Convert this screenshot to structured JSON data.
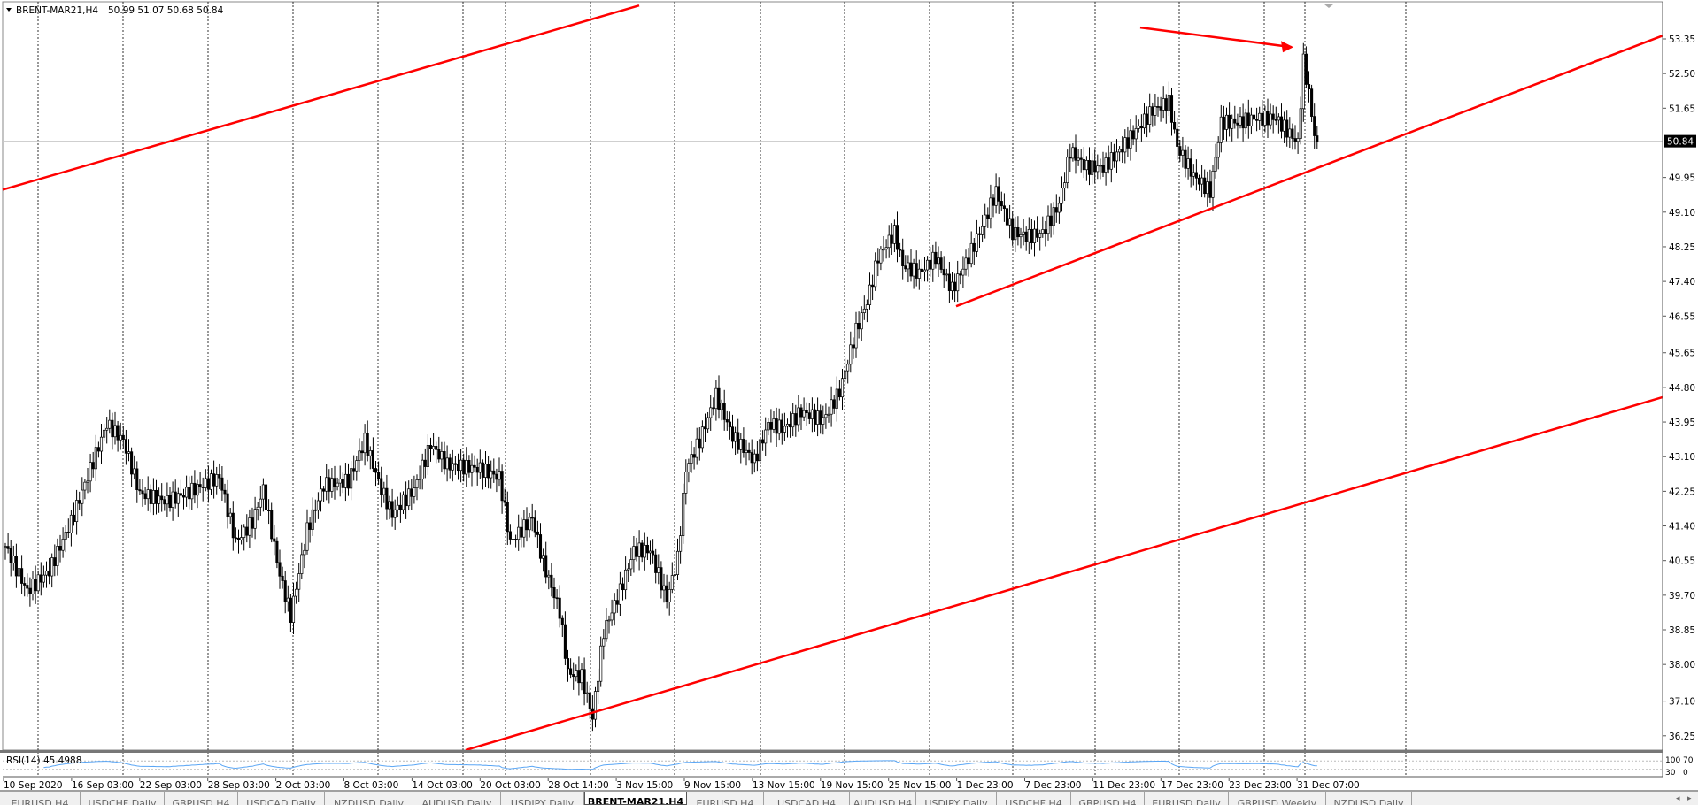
{
  "header": {
    "menu_icon": "triangle-down-icon",
    "symbol": "BRENT-MAR21,H4",
    "ohlc": "50.99 51.07 50.68 50.84"
  },
  "colors": {
    "trendline": "#ff0000",
    "rsi": "#5aa6f5",
    "candle": "#000000",
    "grid": "#000000",
    "price_tag_bg": "#000000"
  },
  "current_price": "50.84",
  "price_axis": [
    "53.35",
    "52.50",
    "51.65",
    "49.95",
    "49.10",
    "48.25",
    "47.40",
    "46.55",
    "45.65",
    "44.80",
    "43.95",
    "43.10",
    "42.25",
    "41.40",
    "40.55",
    "39.70",
    "38.85",
    "38.00",
    "37.10",
    "36.25"
  ],
  "time_axis": [
    "10 Sep 2020",
    "16 Sep 03:00",
    "22 Sep 03:00",
    "28 Sep 03:00",
    "2 Oct 03:00",
    "8 Oct 03:00",
    "14 Oct 03:00",
    "20 Oct 03:00",
    "28 Oct 14:00",
    "3 Nov 15:00",
    "9 Nov 15:00",
    "13 Nov 15:00",
    "19 Nov 15:00",
    "25 Nov 15:00",
    "1 Dec 23:00",
    "7 Dec 23:00",
    "11 Dec 23:00",
    "17 Dec 23:00",
    "23 Dec 23:00",
    "31 Dec 07:00"
  ],
  "rsi": {
    "label": "RSI(14) 45.4988",
    "levels": [
      "100",
      "70",
      "30",
      "0"
    ]
  },
  "chart_data": {
    "type": "candlestick",
    "title": "BRENT-MAR21,H4",
    "timeframe": "H4",
    "ylim": [
      35.8,
      54.3
    ],
    "grid": "vertical dotted",
    "approx_close_path": [
      [
        0,
        40.9
      ],
      [
        8,
        39.8
      ],
      [
        16,
        40.3
      ],
      [
        24,
        41.5
      ],
      [
        31,
        42.8
      ],
      [
        37,
        43.9
      ],
      [
        43,
        43.5
      ],
      [
        49,
        42.2
      ],
      [
        59,
        42.0
      ],
      [
        69,
        42.3
      ],
      [
        78,
        42.6
      ],
      [
        84,
        41.0
      ],
      [
        90,
        41.5
      ],
      [
        94,
        42.3
      ],
      [
        100,
        40.2
      ],
      [
        104,
        39.2
      ],
      [
        110,
        41.3
      ],
      [
        116,
        42.4
      ],
      [
        125,
        42.5
      ],
      [
        131,
        43.5
      ],
      [
        137,
        42.3
      ],
      [
        141,
        41.7
      ],
      [
        149,
        42.3
      ],
      [
        155,
        43.4
      ],
      [
        161,
        42.9
      ],
      [
        173,
        42.8
      ],
      [
        180,
        42.6
      ],
      [
        184,
        41.0
      ],
      [
        192,
        41.6
      ],
      [
        196,
        40.5
      ],
      [
        202,
        39.3
      ],
      [
        205,
        37.8
      ],
      [
        210,
        37.7
      ],
      [
        214,
        36.7
      ],
      [
        218,
        38.8
      ],
      [
        224,
        39.8
      ],
      [
        229,
        40.8
      ],
      [
        235,
        40.8
      ],
      [
        241,
        39.6
      ],
      [
        245,
        40.6
      ],
      [
        248,
        42.8
      ],
      [
        253,
        43.5
      ],
      [
        259,
        44.6
      ],
      [
        265,
        43.6
      ],
      [
        273,
        43.0
      ],
      [
        278,
        43.9
      ],
      [
        284,
        43.8
      ],
      [
        290,
        44.2
      ],
      [
        298,
        44.0
      ],
      [
        304,
        44.7
      ],
      [
        310,
        46.2
      ],
      [
        314,
        46.9
      ],
      [
        318,
        48.0
      ],
      [
        324,
        48.6
      ],
      [
        327,
        47.8
      ],
      [
        333,
        47.6
      ],
      [
        339,
        48.0
      ],
      [
        345,
        47.2
      ],
      [
        351,
        48.0
      ],
      [
        355,
        48.6
      ],
      [
        361,
        49.6
      ],
      [
        367,
        48.6
      ],
      [
        373,
        48.5
      ],
      [
        378,
        48.6
      ],
      [
        384,
        49.3
      ],
      [
        388,
        50.6
      ],
      [
        394,
        50.2
      ],
      [
        400,
        50.2
      ],
      [
        406,
        50.6
      ],
      [
        412,
        51.1
      ],
      [
        418,
        51.6
      ],
      [
        424,
        51.8
      ],
      [
        427,
        50.7
      ],
      [
        433,
        50.0
      ],
      [
        439,
        49.6
      ],
      [
        443,
        51.3
      ],
      [
        449,
        51.3
      ],
      [
        455,
        51.4
      ],
      [
        463,
        51.4
      ],
      [
        471,
        50.8
      ],
      [
        473,
        52.8
      ],
      [
        475,
        52.0
      ],
      [
        477,
        51.0
      ],
      [
        478,
        50.84
      ]
    ],
    "trendlines": [
      {
        "name": "upper-channel",
        "prices": [
          49.65,
          54.17
        ]
      },
      {
        "name": "support-line",
        "prices": [
          46.79,
          53.43
        ]
      },
      {
        "name": "lower-channel",
        "prices": [
          35.9,
          44.56
        ]
      },
      {
        "name": "arrow",
        "prices": [
          53.63,
          53.15
        ]
      }
    ]
  },
  "tabs": [
    {
      "label": "EURUSD,H4"
    },
    {
      "label": "USDCHF,Daily"
    },
    {
      "label": "GBPUSD,H4"
    },
    {
      "label": "USDCAD,Daily"
    },
    {
      "label": "NZDUSD,Daily"
    },
    {
      "label": "AUDUSD,Daily"
    },
    {
      "label": "USDJPY,Daily"
    },
    {
      "label": "BRENT-MAR21,H4",
      "active": true
    },
    {
      "label": "EURUSD,H4"
    },
    {
      "label": "USDCAD,H4"
    },
    {
      "label": "AUDUSD,H4"
    },
    {
      "label": "USDJPY,Daily"
    },
    {
      "label": "USDCHF,H4"
    },
    {
      "label": "GBPUSD,H4"
    },
    {
      "label": "EURUSD,Daily"
    },
    {
      "label": "GBPUSD,Weekly"
    },
    {
      "label": "NZDUSD,Daily"
    }
  ]
}
